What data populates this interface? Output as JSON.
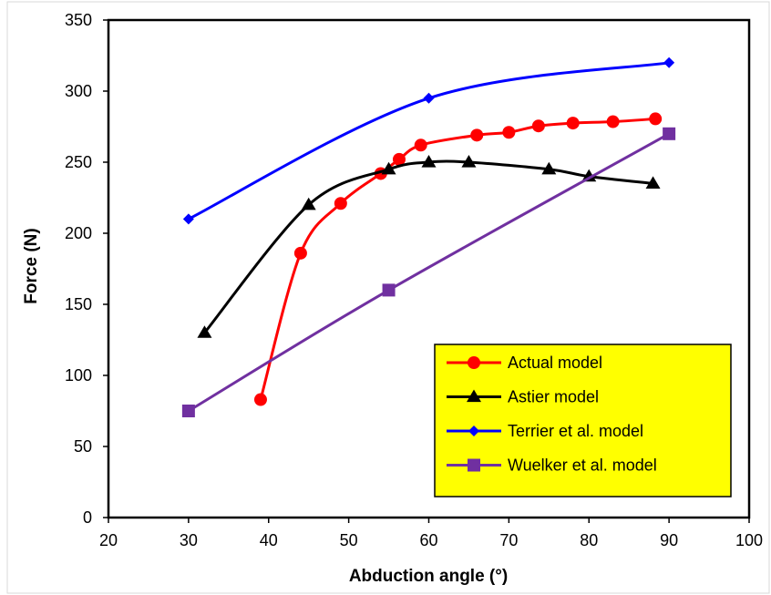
{
  "chart_data": {
    "type": "line",
    "title": "",
    "xlabel": "Abduction angle (°)",
    "ylabel": "Force (N)",
    "xlim": [
      20,
      100
    ],
    "ylim": [
      0,
      350
    ],
    "xticks": [
      20,
      30,
      40,
      50,
      60,
      70,
      80,
      90,
      100
    ],
    "yticks": [
      0,
      50,
      100,
      150,
      200,
      250,
      300,
      350
    ],
    "grid": false,
    "legend_position": "bottom-right",
    "legend_background": "#ffff00",
    "series": [
      {
        "name": "Actual model",
        "color": "#ff0000",
        "marker": "circle",
        "x": [
          39,
          44,
          49,
          54,
          56.3,
          59,
          66,
          70,
          73.7,
          78,
          83,
          88.3
        ],
        "y": [
          83,
          186,
          221,
          242,
          252,
          262,
          269,
          271,
          275.5,
          277.5,
          278.5,
          280.5
        ]
      },
      {
        "name": "Astier model",
        "color": "#000000",
        "marker": "triangle",
        "x": [
          32,
          45,
          55,
          60,
          65,
          75,
          80,
          88
        ],
        "y": [
          130,
          220,
          245,
          250,
          250,
          245,
          240,
          235
        ]
      },
      {
        "name": "Terrier et al. model",
        "color": "#0000ff",
        "marker": "diamond",
        "x": [
          30,
          60,
          90
        ],
        "y": [
          210,
          295,
          320
        ]
      },
      {
        "name": "Wuelker et al. model",
        "color": "#7030a0",
        "marker": "square",
        "x": [
          30,
          55,
          90
        ],
        "y": [
          75,
          160,
          270
        ]
      }
    ]
  }
}
